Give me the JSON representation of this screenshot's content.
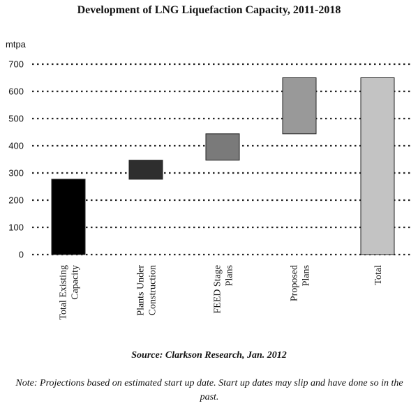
{
  "chart_data": {
    "type": "bar",
    "subtype": "waterfall",
    "title": "Development of LNG Liquefaction Capacity, 2011-2018",
    "ylabel": "mtpa",
    "xlabel": "",
    "ylim": [
      0,
      700
    ],
    "yticks": [
      "0",
      "100",
      "200",
      "300",
      "400",
      "500",
      "600",
      "700"
    ],
    "grid": "dotted horizontal",
    "categories": [
      [
        "Total Existing",
        "Capacity"
      ],
      [
        "Plants Under",
        "Construction"
      ],
      [
        "FEED Stage",
        "Plans"
      ],
      [
        "Proposed",
        "Plans"
      ],
      [
        "Total"
      ]
    ],
    "bars": [
      {
        "bottom": 0,
        "top": 277,
        "color": "#000000"
      },
      {
        "bottom": 277,
        "top": 347,
        "color": "#2e2e2e"
      },
      {
        "bottom": 347,
        "top": 444,
        "color": "#7a7a7a"
      },
      {
        "bottom": 444,
        "top": 650,
        "color": "#999999"
      },
      {
        "bottom": 0,
        "top": 650,
        "color": "#c3c3c3"
      }
    ]
  },
  "source": "Source: Clarkson Research, Jan. 2012",
  "note": "Note: Projections based on estimated start up date. Start up dates may slip and have done so in the past."
}
